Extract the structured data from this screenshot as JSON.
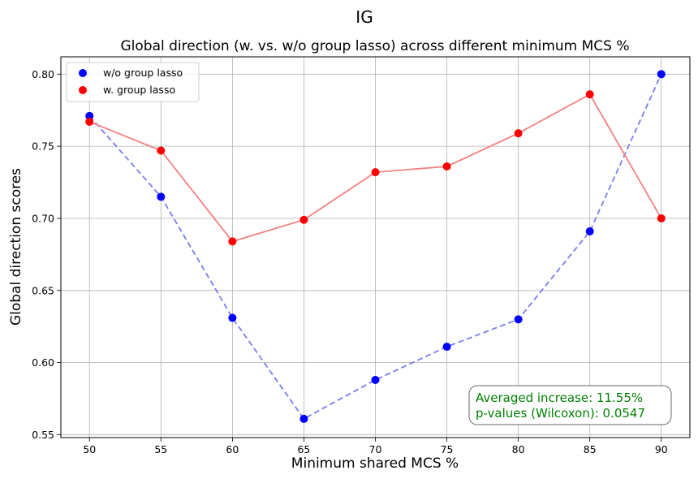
{
  "chart_data": {
    "type": "scatter",
    "suptitle": "IG",
    "title": "Global direction (w. vs. w/o group lasso) across different minimum MCS %",
    "xlabel": "Minimum shared MCS %",
    "ylabel": "Global direction scores",
    "x": [
      50,
      55,
      60,
      65,
      70,
      75,
      80,
      85,
      90
    ],
    "xlim": [
      48,
      92
    ],
    "ylim": [
      0.548,
      0.812
    ],
    "xticks": [
      50,
      55,
      60,
      65,
      70,
      75,
      80,
      85,
      90
    ],
    "yticks": [
      0.55,
      0.6,
      0.65,
      0.7,
      0.75,
      0.8
    ],
    "ytick_labels": [
      "0.55",
      "0.60",
      "0.65",
      "0.70",
      "0.75",
      "0.80"
    ],
    "grid": true,
    "legend_position": "upper-left",
    "series": [
      {
        "name": "w/o group lasso",
        "values": [
          0.771,
          0.715,
          0.631,
          0.561,
          0.588,
          0.611,
          0.63,
          0.691,
          0.8
        ],
        "color": "#0000ff",
        "line_color": "#7b7bef",
        "line_style": "dashed"
      },
      {
        "name": "w. group lasso",
        "values": [
          0.767,
          0.747,
          0.684,
          0.699,
          0.732,
          0.736,
          0.759,
          0.786,
          0.7
        ],
        "color": "#ff0000",
        "line_color": "#f58080",
        "line_style": "solid"
      }
    ],
    "annotation": {
      "lines": [
        "Averaged increase: 11.55%",
        "p-values (Wilcoxon): 0.0547"
      ],
      "color": "#008000",
      "position": "lower-right"
    }
  }
}
